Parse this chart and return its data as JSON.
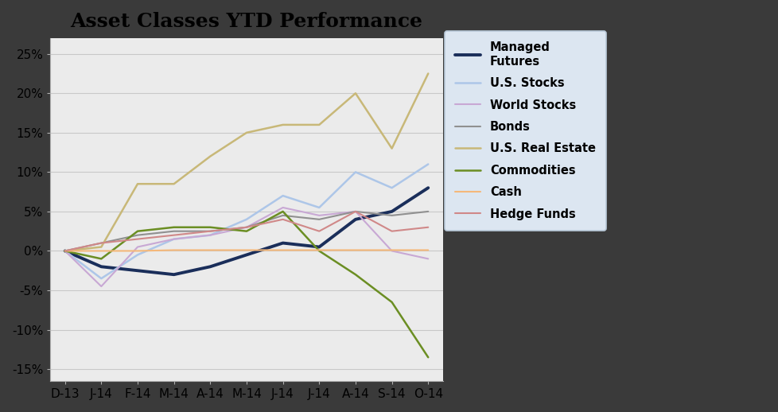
{
  "title": "Asset Classes YTD Performance",
  "x_labels": [
    "D-13",
    "J-14",
    "F-14",
    "M-14",
    "A-14",
    "M-14",
    "J-14",
    "J-14",
    "A-14",
    "S-14",
    "O-14"
  ],
  "ylim": [
    -0.165,
    0.27
  ],
  "yticks": [
    -0.15,
    -0.1,
    -0.05,
    0.0,
    0.05,
    0.1,
    0.15,
    0.2,
    0.25
  ],
  "series": [
    {
      "name": "Managed\nFutures",
      "color": "#1a2e5a",
      "linewidth": 2.8,
      "data": [
        0.0,
        -0.02,
        -0.025,
        -0.03,
        -0.02,
        -0.005,
        0.01,
        0.005,
        0.04,
        0.05,
        0.08
      ]
    },
    {
      "name": "U.S. Stocks",
      "color": "#adc6e8",
      "linewidth": 1.8,
      "data": [
        0.0,
        -0.035,
        -0.005,
        0.015,
        0.02,
        0.04,
        0.07,
        0.055,
        0.1,
        0.08,
        0.11
      ]
    },
    {
      "name": "World Stocks",
      "color": "#c8a8d4",
      "linewidth": 1.5,
      "data": [
        0.0,
        -0.045,
        0.005,
        0.015,
        0.02,
        0.03,
        0.055,
        0.045,
        0.05,
        0.0,
        -0.01
      ]
    },
    {
      "name": "Bonds",
      "color": "#909090",
      "linewidth": 1.5,
      "data": [
        0.0,
        0.01,
        0.02,
        0.025,
        0.025,
        0.03,
        0.045,
        0.04,
        0.05,
        0.045,
        0.05
      ]
    },
    {
      "name": "U.S. Real Estate",
      "color": "#c8b878",
      "linewidth": 1.8,
      "data": [
        0.0,
        0.005,
        0.085,
        0.085,
        0.12,
        0.15,
        0.16,
        0.16,
        0.2,
        0.13,
        0.225
      ]
    },
    {
      "name": "Commodities",
      "color": "#6b8e23",
      "linewidth": 1.8,
      "data": [
        0.0,
        -0.01,
        0.025,
        0.03,
        0.03,
        0.025,
        0.05,
        0.0,
        -0.03,
        -0.065,
        -0.135
      ]
    },
    {
      "name": "Cash",
      "color": "#f5b87a",
      "linewidth": 1.5,
      "data": [
        0.0,
        0.0,
        0.0,
        0.001,
        0.001,
        0.001,
        0.001,
        0.001,
        0.001,
        0.001,
        0.001
      ]
    },
    {
      "name": "Hedge Funds",
      "color": "#d08888",
      "linewidth": 1.5,
      "data": [
        0.0,
        0.01,
        0.015,
        0.02,
        0.025,
        0.03,
        0.04,
        0.025,
        0.05,
        0.025,
        0.03
      ]
    }
  ],
  "plot_bg_color": "#ebebeb",
  "legend_bg_color": "#dce6f1",
  "legend_edge_color": "#b8c8d8",
  "outer_bg_color": "#404040",
  "title_fontsize": 18,
  "tick_fontsize": 11,
  "grid_color": "#c8c8c8",
  "grid_linewidth": 0.8
}
